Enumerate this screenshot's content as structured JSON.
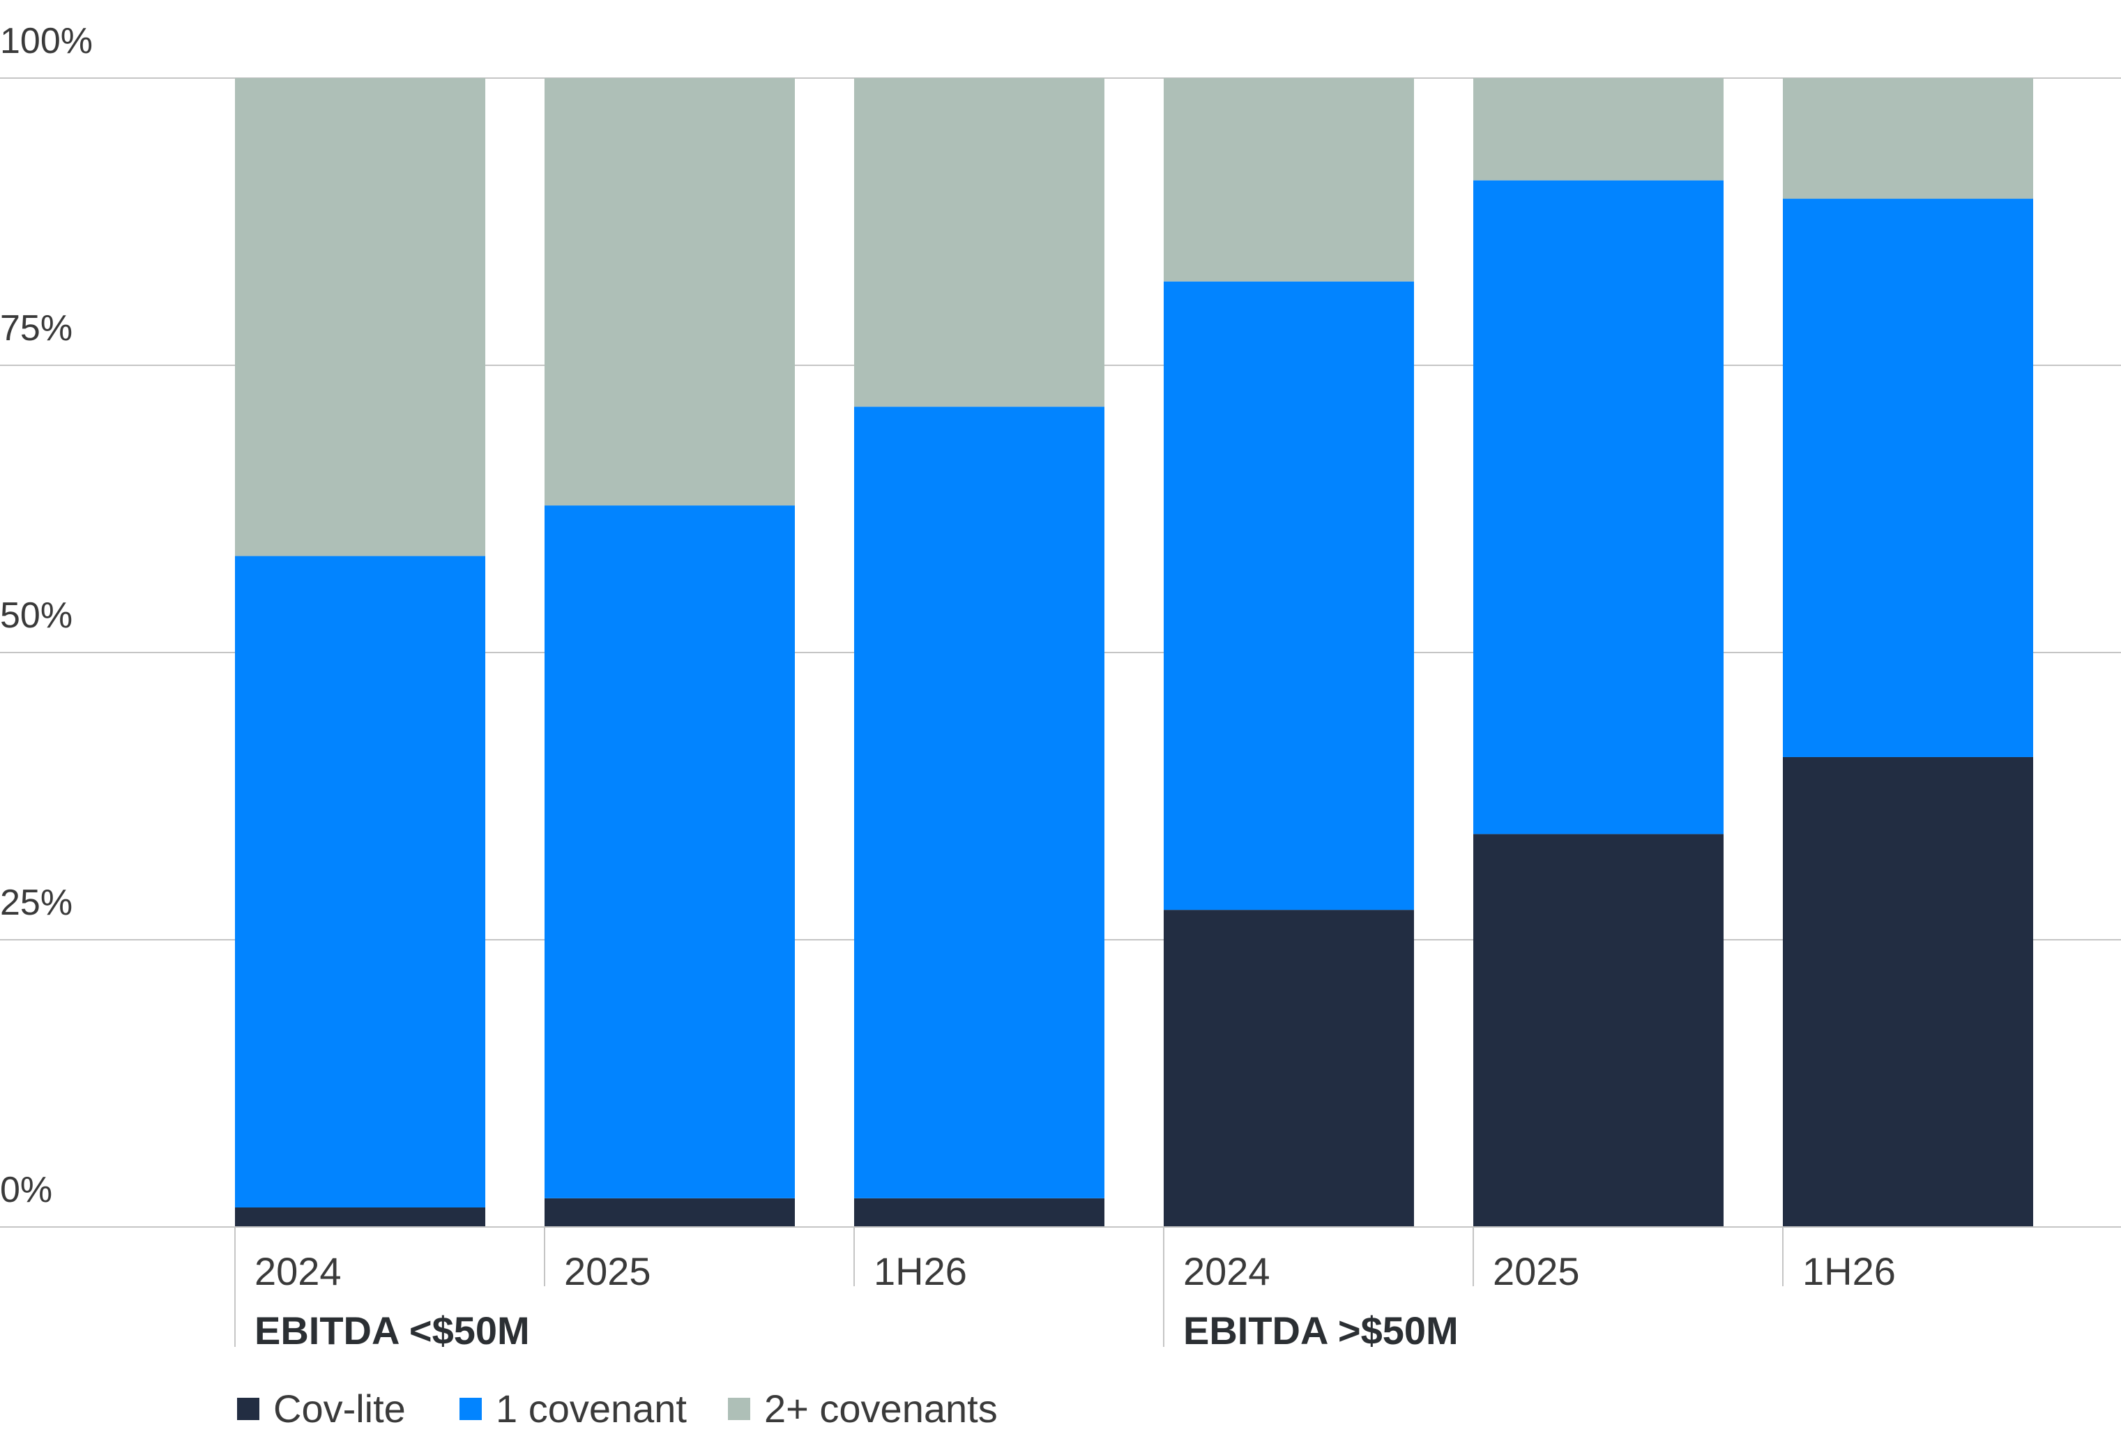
{
  "chart_data": {
    "type": "bar",
    "stacked": true,
    "categories": [
      "2024",
      "2025",
      "1H26",
      "2024",
      "2025",
      "1H26"
    ],
    "groups": [
      {
        "label": "EBITDA <$50M",
        "categories": [
          "2024",
          "2025",
          "1H26"
        ]
      },
      {
        "label": "EBITDA >$50M",
        "categories": [
          "2024",
          "2025",
          "1H26"
        ]
      }
    ],
    "series": [
      {
        "name": "Cov-lite",
        "color": "#222d42",
        "values": [
          1.7,
          2.5,
          2.5,
          27.6,
          34.2,
          40.9
        ]
      },
      {
        "name": "1 covenant",
        "color": "#0284ff",
        "values": [
          56.7,
          60.3,
          68.9,
          54.7,
          56.9,
          48.6
        ]
      },
      {
        "name": "2+ covenants",
        "color": "#aebfb7",
        "values": [
          41.6,
          37.2,
          28.6,
          17.7,
          8.9,
          10.5
        ]
      }
    ],
    "y_ticks": [
      "0%",
      "25%",
      "50%",
      "75%",
      "100%"
    ],
    "y_tick_values": [
      0,
      25,
      50,
      75,
      100
    ],
    "ylim": [
      0,
      100
    ],
    "grid": true,
    "legend_position": "bottom-left",
    "colors": {
      "grid": "#c5c5c5",
      "tick_text": "#3a3a3a",
      "group_label": "#2b2f33"
    }
  }
}
